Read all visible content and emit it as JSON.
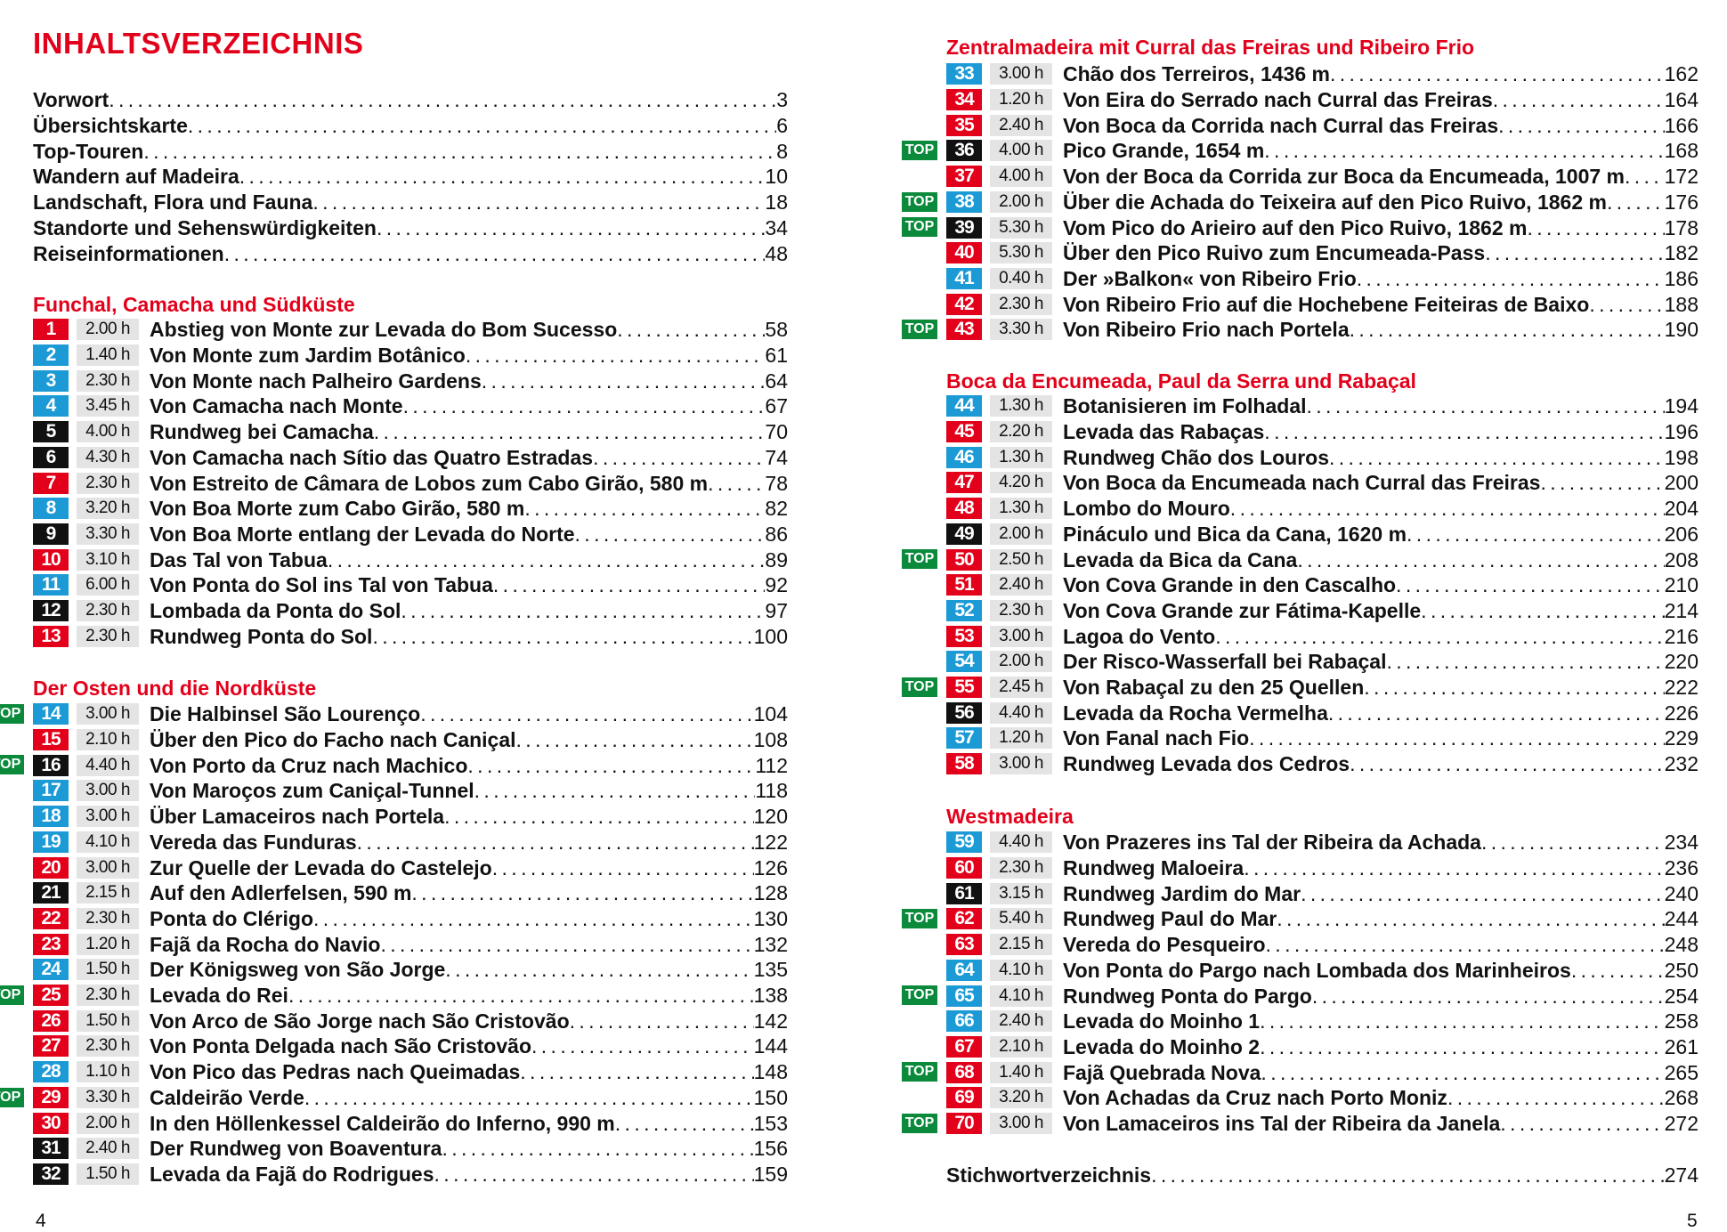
{
  "title": "INHALTSVERZEICHNIS",
  "colors": {
    "red": "#e2001a",
    "blue": "#1c9ad6",
    "black": "#111111",
    "top": "#0b8a3c",
    "duration_bg": "#e4e4e4"
  },
  "top_label": "TOP",
  "front_matter": [
    {
      "title": "Vorwort",
      "page": "3"
    },
    {
      "title": "Übersichtskarte",
      "page": "6"
    },
    {
      "title": "Top-Touren",
      "page": "8"
    },
    {
      "title": "Wandern auf Madeira",
      "page": "10"
    },
    {
      "title": "Landschaft, Flora und Fauna",
      "page": "18"
    },
    {
      "title": "Standorte und Sehenswürdigkeiten",
      "page": "34"
    },
    {
      "title": "Reiseinformationen",
      "page": "48"
    }
  ],
  "sections": [
    {
      "heading": "Funchal, Camacha und Südküste",
      "tours": [
        {
          "num": "1",
          "color": "red",
          "duration": "2.00 h",
          "title": "Abstieg von Monte zur Levada do Bom Sucesso",
          "page": "58"
        },
        {
          "num": "2",
          "color": "blue",
          "duration": "1.40 h",
          "title": "Von Monte zum Jardim Botânico",
          "page": "61"
        },
        {
          "num": "3",
          "color": "blue",
          "duration": "2.30 h",
          "title": "Von Monte nach Palheiro Gardens",
          "page": "64"
        },
        {
          "num": "4",
          "color": "blue",
          "duration": "3.45 h",
          "title": "Von Camacha nach Monte",
          "page": "67"
        },
        {
          "num": "5",
          "color": "black",
          "duration": "4.00 h",
          "title": "Rundweg bei Camacha",
          "page": "70"
        },
        {
          "num": "6",
          "color": "black",
          "duration": "4.30 h",
          "title": "Von Camacha nach Sítio das Quatro Estradas",
          "page": "74"
        },
        {
          "num": "7",
          "color": "red",
          "duration": "2.30 h",
          "title": "Von Estreito de Câmara de Lobos zum Cabo Girão, 580 m",
          "page": "78"
        },
        {
          "num": "8",
          "color": "blue",
          "duration": "3.20 h",
          "title": "Von Boa Morte zum Cabo Girão, 580 m",
          "page": "82"
        },
        {
          "num": "9",
          "color": "black",
          "duration": "3.30 h",
          "title": "Von Boa Morte entlang der Levada do Norte",
          "page": "86"
        },
        {
          "num": "10",
          "color": "red",
          "duration": "3.10 h",
          "title": "Das Tal von Tabua",
          "page": "89"
        },
        {
          "num": "11",
          "color": "blue",
          "duration": "6.00 h",
          "title": "Von Ponta do Sol ins Tal von Tabua",
          "page": "92"
        },
        {
          "num": "12",
          "color": "black",
          "duration": "2.30 h",
          "title": "Lombada da Ponta do Sol",
          "page": "97"
        },
        {
          "num": "13",
          "color": "red",
          "duration": "2.30 h",
          "title": "Rundweg Ponta do Sol",
          "page": "100"
        }
      ]
    },
    {
      "heading": "Der Osten und die Nordküste",
      "tours": [
        {
          "num": "14",
          "color": "blue",
          "duration": "3.00 h",
          "title": "Die Halbinsel São Lourenço",
          "page": "104",
          "top": true
        },
        {
          "num": "15",
          "color": "red",
          "duration": "2.10 h",
          "title": "Über den Pico do Facho nach Caniçal",
          "page": "108"
        },
        {
          "num": "16",
          "color": "black",
          "duration": "4.40 h",
          "title": "Von Porto da Cruz nach Machico",
          "page": "112",
          "top": true
        },
        {
          "num": "17",
          "color": "blue",
          "duration": "3.00 h",
          "title": "Von Maroços zum Caniçal-Tunnel",
          "page": "118"
        },
        {
          "num": "18",
          "color": "blue",
          "duration": "3.00 h",
          "title": "Über Lamaceiros nach Portela",
          "page": "120"
        },
        {
          "num": "19",
          "color": "blue",
          "duration": "4.10 h",
          "title": "Vereda das Funduras",
          "page": "122"
        },
        {
          "num": "20",
          "color": "red",
          "duration": "3.00 h",
          "title": "Zur Quelle der Levada do Castelejo",
          "page": "126"
        },
        {
          "num": "21",
          "color": "black",
          "duration": "2.15 h",
          "title": "Auf den Adlerfelsen, 590 m",
          "page": "128"
        },
        {
          "num": "22",
          "color": "red",
          "duration": "2.30 h",
          "title": "Ponta do Clérigo",
          "page": "130"
        },
        {
          "num": "23",
          "color": "red",
          "duration": "1.20 h",
          "title": "Fajã da Rocha do Navio",
          "page": "132"
        },
        {
          "num": "24",
          "color": "blue",
          "duration": "1.50 h",
          "title": "Der Königsweg von São Jorge",
          "page": "135"
        },
        {
          "num": "25",
          "color": "red",
          "duration": "2.30 h",
          "title": "Levada do Rei",
          "page": "138",
          "top": true
        },
        {
          "num": "26",
          "color": "red",
          "duration": "1.50 h",
          "title": "Von Arco de São Jorge nach São Cristovão",
          "page": "142"
        },
        {
          "num": "27",
          "color": "red",
          "duration": "2.30 h",
          "title": "Von Ponta Delgada nach São Cristovão",
          "page": "144"
        },
        {
          "num": "28",
          "color": "blue",
          "duration": "1.10 h",
          "title": "Von Pico das Pedras nach Queimadas",
          "page": "148"
        },
        {
          "num": "29",
          "color": "red",
          "duration": "3.30 h",
          "title": "Caldeirão Verde",
          "page": "150",
          "top": true
        },
        {
          "num": "30",
          "color": "red",
          "duration": "2.00 h",
          "title": "In den Höllenkessel Caldeirão do Inferno, 990 m",
          "page": "153"
        },
        {
          "num": "31",
          "color": "black",
          "duration": "2.40 h",
          "title": "Der Rundweg von Boaventura",
          "page": "156"
        },
        {
          "num": "32",
          "color": "black",
          "duration": "1.50 h",
          "title": "Levada da Fajã do Rodrigues",
          "page": "159"
        }
      ]
    },
    {
      "heading": "Zentralmadeira mit Curral das Freiras und Ribeiro Frio",
      "tours": [
        {
          "num": "33",
          "color": "blue",
          "duration": "3.00 h",
          "title": "Chão dos Terreiros, 1436 m",
          "page": "162"
        },
        {
          "num": "34",
          "color": "red",
          "duration": "1.20 h",
          "title": "Von Eira do Serrado nach Curral das Freiras",
          "page": "164"
        },
        {
          "num": "35",
          "color": "red",
          "duration": "2.40 h",
          "title": "Von Boca da Corrida nach Curral das Freiras",
          "page": "166"
        },
        {
          "num": "36",
          "color": "black",
          "duration": "4.00 h",
          "title": "Pico Grande, 1654 m",
          "page": "168",
          "top": true
        },
        {
          "num": "37",
          "color": "red",
          "duration": "4.00 h",
          "title": "Von der Boca da Corrida zur Boca da Encumeada, 1007 m",
          "page": "172"
        },
        {
          "num": "38",
          "color": "blue",
          "duration": "2.00 h",
          "title": "Über die Achada do Teixeira auf den Pico Ruivo, 1862 m",
          "page": "176",
          "top": true
        },
        {
          "num": "39",
          "color": "black",
          "duration": "5.30 h",
          "title": "Vom Pico do Arieiro auf den Pico Ruivo, 1862 m",
          "page": "178",
          "top": true
        },
        {
          "num": "40",
          "color": "red",
          "duration": "5.30 h",
          "title": "Über den Pico Ruivo zum Encumeada-Pass",
          "page": "182"
        },
        {
          "num": "41",
          "color": "blue",
          "duration": "0.40 h",
          "title": "Der »Balkon« von Ribeiro Frio",
          "page": "186"
        },
        {
          "num": "42",
          "color": "red",
          "duration": "2.30 h",
          "title": "Von Ribeiro Frio auf die Hochebene Feiteiras de Baixo",
          "page": "188"
        },
        {
          "num": "43",
          "color": "red",
          "duration": "3.30 h",
          "title": "Von Ribeiro Frio nach Portela",
          "page": "190",
          "top": true
        }
      ]
    },
    {
      "heading": "Boca da Encumeada, Paul da Serra und Rabaçal",
      "tours": [
        {
          "num": "44",
          "color": "blue",
          "duration": "1.30 h",
          "title": "Botanisieren im Folhadal",
          "page": "194"
        },
        {
          "num": "45",
          "color": "red",
          "duration": "2.20 h",
          "title": "Levada das Rabaças",
          "page": "196"
        },
        {
          "num": "46",
          "color": "blue",
          "duration": "1.30 h",
          "title": "Rundweg Chão dos Louros",
          "page": "198"
        },
        {
          "num": "47",
          "color": "red",
          "duration": "4.20 h",
          "title": "Von Boca da Encumeada nach Curral das Freiras",
          "page": "200"
        },
        {
          "num": "48",
          "color": "red",
          "duration": "1.30 h",
          "title": "Lombo do Mouro",
          "page": "204"
        },
        {
          "num": "49",
          "color": "black",
          "duration": "2.00 h",
          "title": "Pináculo und Bica da Cana, 1620 m",
          "page": "206"
        },
        {
          "num": "50",
          "color": "red",
          "duration": "2.50 h",
          "title": "Levada da Bica da Cana",
          "page": "208",
          "top": true
        },
        {
          "num": "51",
          "color": "red",
          "duration": "2.40 h",
          "title": "Von Cova Grande in den Cascalho",
          "page": "210"
        },
        {
          "num": "52",
          "color": "blue",
          "duration": "2.30 h",
          "title": "Von Cova Grande zur Fátima-Kapelle",
          "page": "214"
        },
        {
          "num": "53",
          "color": "red",
          "duration": "3.00 h",
          "title": "Lagoa do Vento",
          "page": "216"
        },
        {
          "num": "54",
          "color": "blue",
          "duration": "2.00 h",
          "title": "Der Risco-Wasserfall bei Rabaçal",
          "page": "220"
        },
        {
          "num": "55",
          "color": "red",
          "duration": "2.45 h",
          "title": "Von Rabaçal zu den 25 Quellen",
          "page": "222",
          "top": true
        },
        {
          "num": "56",
          "color": "black",
          "duration": "4.40 h",
          "title": "Levada da Rocha Vermelha",
          "page": "226"
        },
        {
          "num": "57",
          "color": "blue",
          "duration": "1.20 h",
          "title": "Von Fanal nach Fio",
          "page": "229"
        },
        {
          "num": "58",
          "color": "red",
          "duration": "3.00 h",
          "title": "Rundweg Levada dos Cedros",
          "page": "232"
        }
      ]
    },
    {
      "heading": "Westmadeira",
      "tours": [
        {
          "num": "59",
          "color": "blue",
          "duration": "4.40 h",
          "title": "Von Prazeres ins Tal der Ribeira da Achada",
          "page": "234"
        },
        {
          "num": "60",
          "color": "red",
          "duration": "2.30 h",
          "title": "Rundweg Maloeira",
          "page": "236"
        },
        {
          "num": "61",
          "color": "black",
          "duration": "3.15 h",
          "title": "Rundweg Jardim do Mar",
          "page": "240"
        },
        {
          "num": "62",
          "color": "red",
          "duration": "5.40 h",
          "title": "Rundweg Paul do Mar",
          "page": "244",
          "top": true
        },
        {
          "num": "63",
          "color": "red",
          "duration": "2.15 h",
          "title": "Vereda do Pesqueiro",
          "page": "248"
        },
        {
          "num": "64",
          "color": "blue",
          "duration": "4.10 h",
          "title": "Von Ponta do Pargo nach Lombada dos Marinheiros",
          "page": "250"
        },
        {
          "num": "65",
          "color": "blue",
          "duration": "4.10 h",
          "title": "Rundweg Ponta do Pargo",
          "page": "254",
          "top": true
        },
        {
          "num": "66",
          "color": "blue",
          "duration": "2.40 h",
          "title": "Levada do Moinho 1",
          "page": "258"
        },
        {
          "num": "67",
          "color": "red",
          "duration": "2.10 h",
          "title": "Levada do Moinho 2",
          "page": "261"
        },
        {
          "num": "68",
          "color": "red",
          "duration": "1.40 h",
          "title": "Fajã Quebrada Nova",
          "page": "265",
          "top": true
        },
        {
          "num": "69",
          "color": "red",
          "duration": "3.20 h",
          "title": "Von Achadas da Cruz nach Porto Moniz",
          "page": "268"
        },
        {
          "num": "70",
          "color": "red",
          "duration": "3.00 h",
          "title": "Von Lamaceiros ins Tal der Ribeira da Janela",
          "page": "272",
          "top": true
        }
      ]
    }
  ],
  "index": {
    "title": "Stichwortverzeichnis",
    "page": "274"
  },
  "page_numbers": {
    "left": "4",
    "right": "5"
  }
}
